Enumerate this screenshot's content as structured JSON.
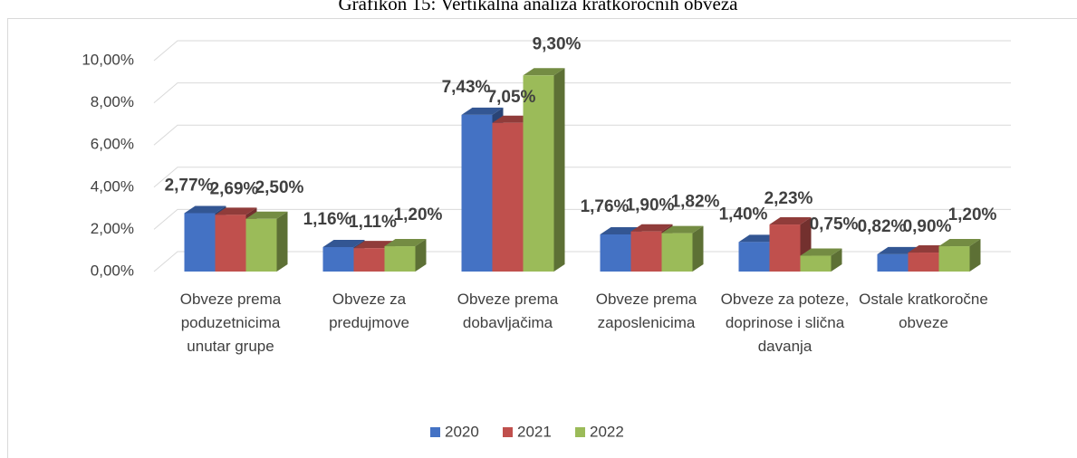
{
  "chart_data": {
    "type": "bar",
    "title": "Grafikon 15: Vertikalna analiza kratkoročnih obveza",
    "categories": [
      "Obveze prema poduzetnicima unutar grupe",
      "Obveze za predujmove",
      "Obveze prema dobavljačima",
      "Obveze prema zaposlenicima",
      "Obveze za poteze, doprinose i slična davanja",
      "Ostale kratkoročne obveze"
    ],
    "series": [
      {
        "name": "2020",
        "color": "#4472c4",
        "values": [
          2.77,
          1.16,
          7.43,
          1.76,
          1.4,
          0.82
        ],
        "value_labels": [
          "2,77%",
          "1,16%",
          "7,43%",
          "1,76%",
          "1,40%",
          "0,82%"
        ]
      },
      {
        "name": "2021",
        "color": "#c0504d",
        "values": [
          2.69,
          1.11,
          7.05,
          1.9,
          2.23,
          0.9
        ],
        "value_labels": [
          "2,69%",
          "1,11%",
          "7,05%",
          "1,90%",
          "2,23%",
          "0,90%"
        ]
      },
      {
        "name": "2022",
        "color": "#9bbb59",
        "values": [
          2.5,
          1.2,
          9.3,
          1.82,
          0.75,
          1.2
        ],
        "value_labels": [
          "2,50%",
          "1,20%",
          "9,30%",
          "1,82%",
          "0,75%",
          "1,20%"
        ]
      }
    ],
    "ylim": [
      0,
      10
    ],
    "yticks": [
      {
        "value": 0,
        "label": "0,00%"
      },
      {
        "value": 2,
        "label": "2,00%"
      },
      {
        "value": 4,
        "label": "4,00%"
      },
      {
        "value": 6,
        "label": "6,00%"
      },
      {
        "value": 8,
        "label": "8,00%"
      },
      {
        "value": 10,
        "label": "10,00%"
      }
    ],
    "grid": true,
    "legend": "bottom"
  }
}
